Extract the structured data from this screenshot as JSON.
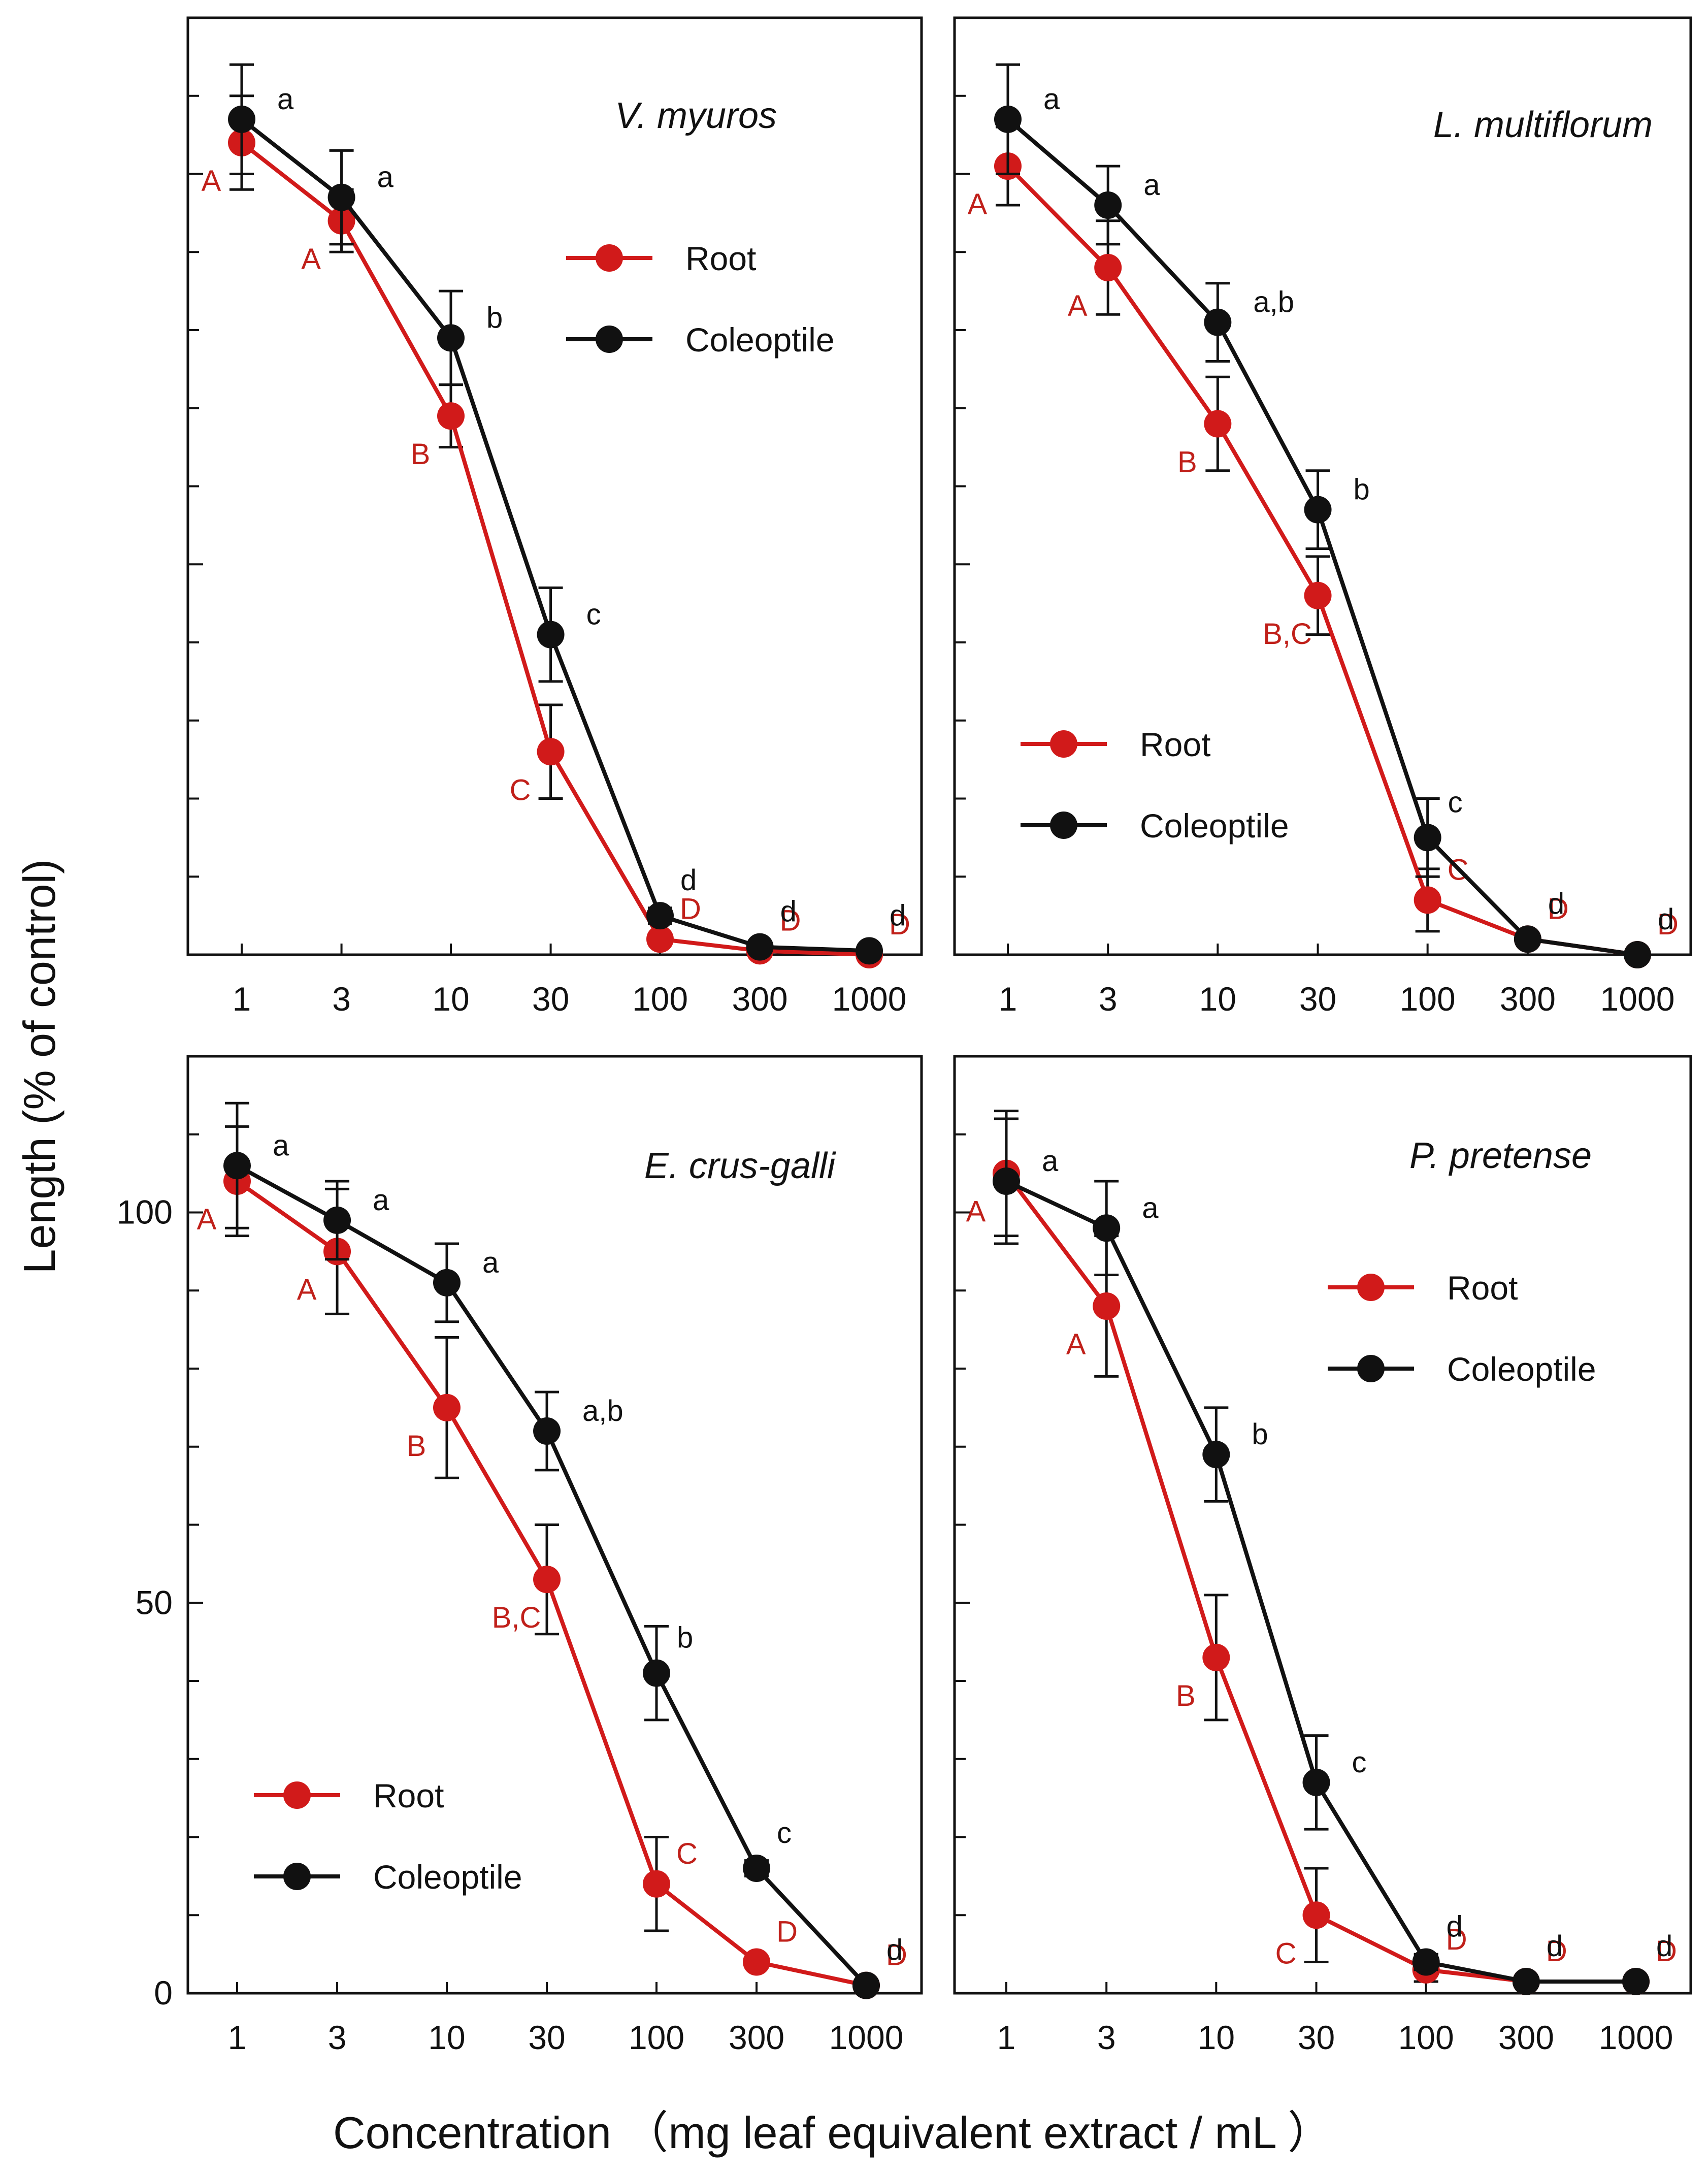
{
  "figure": {
    "ylabel": "Length  (% of control)",
    "xlabel": "Concentration （mg leaf equivalent extract / mL ）",
    "x_tick_labels": [
      "1",
      "3",
      "10",
      "30",
      "100",
      "300",
      "1000"
    ],
    "y_tick_labels": [
      "0",
      "50",
      "100"
    ],
    "legend": [
      "Root",
      "Coleoptile"
    ],
    "colors": {
      "root": "#d11a1a",
      "coleoptile": "#111111",
      "root_letter": "#c0201a",
      "frame": "#111111"
    }
  },
  "chart_data": [
    {
      "type": "line",
      "title": "V. myuros",
      "x": [
        1,
        3,
        10,
        30,
        100,
        300,
        1000
      ],
      "xscale": "log",
      "ylim": [
        0,
        120
      ],
      "legend_position": "top-right",
      "series": [
        {
          "name": "Root",
          "values": [
            104,
            94,
            69,
            26,
            2,
            0.5,
            0
          ],
          "errors": [
            6,
            4,
            4,
            6,
            0.5,
            0.3,
            0.3
          ],
          "letters": [
            "A",
            "A",
            "B",
            "C",
            "D",
            "D",
            "D"
          ]
        },
        {
          "name": "Coleoptile",
          "values": [
            107,
            97,
            79,
            41,
            5,
            1,
            0.5
          ],
          "errors": [
            7,
            6,
            6,
            6,
            1,
            0.3,
            0.3
          ],
          "letters": [
            "a",
            "a",
            "b",
            "c",
            "d",
            "d",
            "d"
          ]
        }
      ]
    },
    {
      "type": "line",
      "title": "L. multiflorum",
      "x": [
        1,
        3,
        10,
        30,
        100,
        300,
        1000
      ],
      "xscale": "log",
      "ylim": [
        0,
        120
      ],
      "legend_position": "middle-right",
      "series": [
        {
          "name": "Root",
          "values": [
            101,
            88,
            68,
            46,
            7,
            2,
            0
          ],
          "errors": [
            5,
            6,
            6,
            5,
            4,
            0.5,
            0.3
          ],
          "letters": [
            "A",
            "A",
            "B",
            "B,C",
            "C",
            "D",
            "D"
          ]
        },
        {
          "name": "Coleoptile",
          "values": [
            107,
            96,
            81,
            57,
            15,
            2,
            0
          ],
          "errors": [
            7,
            5,
            5,
            5,
            5,
            0.5,
            0.3
          ],
          "letters": [
            "a",
            "a",
            "a,b",
            "b",
            "c",
            "d",
            "d"
          ]
        }
      ]
    },
    {
      "type": "line",
      "title": "E. crus-galli",
      "x": [
        1,
        3,
        10,
        30,
        100,
        300,
        1000
      ],
      "xscale": "log",
      "ylim": [
        0,
        120
      ],
      "legend_position": "bottom-left",
      "series": [
        {
          "name": "Root",
          "values": [
            104,
            95,
            75,
            53,
            14,
            4,
            1
          ],
          "errors": [
            7,
            8,
            9,
            7,
            6,
            0.5,
            0.3
          ],
          "letters": [
            "A",
            "A",
            "B",
            "B,C",
            "C",
            "D",
            "D"
          ]
        },
        {
          "name": "Coleoptile",
          "values": [
            106,
            99,
            91,
            72,
            41,
            16,
            1
          ],
          "errors": [
            8,
            5,
            5,
            5,
            6,
            1,
            0.3
          ],
          "letters": [
            "a",
            "a",
            "a",
            "a,b",
            "b",
            "c",
            "d"
          ]
        }
      ]
    },
    {
      "type": "line",
      "title": "P. pretense",
      "x": [
        1,
        3,
        10,
        30,
        100,
        300,
        1000
      ],
      "xscale": "log",
      "ylim": [
        0,
        120
      ],
      "legend_position": "top-right",
      "series": [
        {
          "name": "Root",
          "values": [
            105,
            88,
            43,
            10,
            3,
            1.5,
            1.5
          ],
          "errors": [
            8,
            9,
            8,
            6,
            1.5,
            0.5,
            0.5
          ],
          "letters": [
            "A",
            "A",
            "B",
            "C",
            "D",
            "D",
            "D"
          ]
        },
        {
          "name": "Coleoptile",
          "values": [
            104,
            98,
            69,
            27,
            4,
            1.5,
            1.5
          ],
          "errors": [
            8,
            6,
            6,
            6,
            1,
            0.5,
            0.5
          ],
          "letters": [
            "a",
            "a",
            "b",
            "c",
            "d",
            "d",
            "d"
          ]
        }
      ]
    }
  ]
}
